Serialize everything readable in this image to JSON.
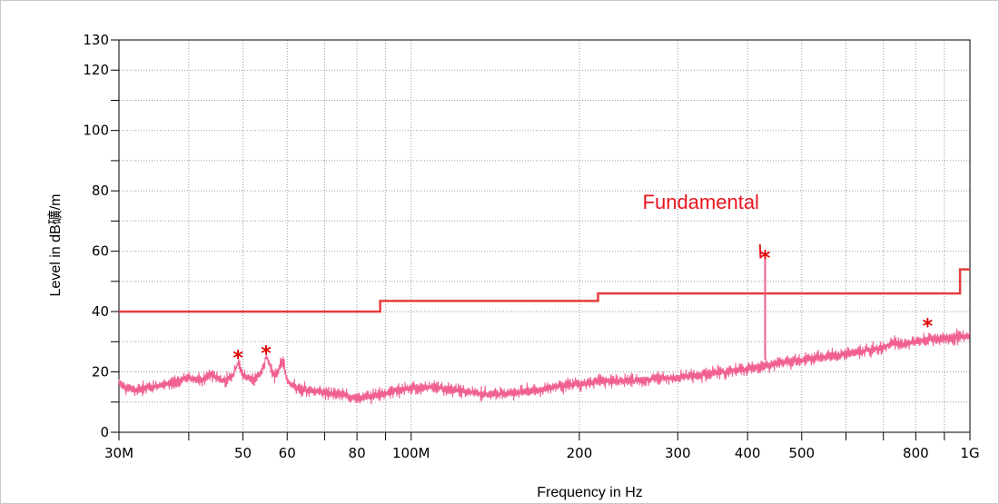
{
  "chart_data": {
    "type": "line",
    "title": "",
    "xlabel": "Frequency in Hz",
    "ylabel": "Level in dB礦/m",
    "x_scale": "log",
    "xlim": [
      30000000,
      1000000000
    ],
    "ylim": [
      0,
      130
    ],
    "grid": true,
    "x_ticks": [
      {
        "value": 30000000,
        "label": "30M"
      },
      {
        "value": 40000000,
        "label": ""
      },
      {
        "value": 50000000,
        "label": "50"
      },
      {
        "value": 60000000,
        "label": "60"
      },
      {
        "value": 70000000,
        "label": ""
      },
      {
        "value": 80000000,
        "label": "80"
      },
      {
        "value": 90000000,
        "label": ""
      },
      {
        "value": 100000000,
        "label": "100M"
      },
      {
        "value": 200000000,
        "label": "200"
      },
      {
        "value": 300000000,
        "label": "300"
      },
      {
        "value": 400000000,
        "label": "400"
      },
      {
        "value": 500000000,
        "label": "500"
      },
      {
        "value": 600000000,
        "label": ""
      },
      {
        "value": 700000000,
        "label": ""
      },
      {
        "value": 800000000,
        "label": "800"
      },
      {
        "value": 900000000,
        "label": ""
      },
      {
        "value": 1000000000,
        "label": "1G"
      }
    ],
    "y_ticks": [
      {
        "value": 0,
        "label": "0"
      },
      {
        "value": 10,
        "label": ""
      },
      {
        "value": 20,
        "label": "20"
      },
      {
        "value": 30,
        "label": ""
      },
      {
        "value": 40,
        "label": "40"
      },
      {
        "value": 50,
        "label": ""
      },
      {
        "value": 60,
        "label": "60"
      },
      {
        "value": 70,
        "label": ""
      },
      {
        "value": 80,
        "label": "80"
      },
      {
        "value": 90,
        "label": ""
      },
      {
        "value": 100,
        "label": "100"
      },
      {
        "value": 110,
        "label": ""
      },
      {
        "value": 120,
        "label": "120"
      },
      {
        "value": 130,
        "label": "130"
      }
    ],
    "series": [
      {
        "color": "#e83c3c",
        "style": "step",
        "points": [
          [
            30000000,
            40
          ],
          [
            88000000,
            40
          ],
          [
            88000000,
            43.5
          ],
          [
            216000000,
            43.5
          ],
          [
            216000000,
            46
          ],
          [
            960000000,
            46
          ],
          [
            960000000,
            54
          ],
          [
            1000000000,
            54
          ]
        ]
      },
      {
        "color": "#f06090",
        "style": "noisy",
        "points": [
          [
            30000000,
            16
          ],
          [
            32000000,
            14
          ],
          [
            34000000,
            15
          ],
          [
            36000000,
            15.5
          ],
          [
            38000000,
            17
          ],
          [
            40000000,
            18
          ],
          [
            42000000,
            17
          ],
          [
            44000000,
            19
          ],
          [
            46000000,
            17
          ],
          [
            48000000,
            19
          ],
          [
            49000000,
            23
          ],
          [
            50000000,
            19
          ],
          [
            52000000,
            17
          ],
          [
            54000000,
            20
          ],
          [
            55000000,
            25
          ],
          [
            56000000,
            22
          ],
          [
            57000000,
            18
          ],
          [
            58000000,
            21
          ],
          [
            59000000,
            24
          ],
          [
            60000000,
            17
          ],
          [
            63000000,
            14
          ],
          [
            66000000,
            14
          ],
          [
            70000000,
            13
          ],
          [
            75000000,
            12.5
          ],
          [
            80000000,
            11
          ],
          [
            85000000,
            12
          ],
          [
            90000000,
            13
          ],
          [
            95000000,
            14
          ],
          [
            100000000,
            14.5
          ],
          [
            105000000,
            15
          ],
          [
            110000000,
            15
          ],
          [
            120000000,
            14
          ],
          [
            130000000,
            13
          ],
          [
            140000000,
            12.5
          ],
          [
            150000000,
            13
          ],
          [
            160000000,
            13.5
          ],
          [
            170000000,
            14
          ],
          [
            180000000,
            15
          ],
          [
            200000000,
            16
          ],
          [
            220000000,
            17
          ],
          [
            250000000,
            17
          ],
          [
            280000000,
            18
          ],
          [
            300000000,
            18
          ],
          [
            330000000,
            19
          ],
          [
            360000000,
            20
          ],
          [
            400000000,
            21
          ],
          [
            430000000,
            22
          ],
          [
            460000000,
            23
          ],
          [
            500000000,
            24
          ],
          [
            550000000,
            25
          ],
          [
            600000000,
            26
          ],
          [
            650000000,
            27
          ],
          [
            700000000,
            28
          ],
          [
            730000000,
            30
          ],
          [
            760000000,
            29
          ],
          [
            800000000,
            30
          ],
          [
            850000000,
            31
          ],
          [
            900000000,
            31
          ],
          [
            950000000,
            31.5
          ],
          [
            1000000000,
            32
          ]
        ]
      }
    ],
    "spike": {
      "x": 430000000,
      "y": 58,
      "base": 24,
      "color": "#f06090"
    },
    "markers": {
      "color": "#e00000",
      "glyph": "*",
      "points": [
        [
          49000000,
          25.5
        ],
        [
          55000000,
          27
        ],
        [
          430000000,
          58.5
        ],
        [
          840000000,
          36
        ]
      ]
    },
    "annotations": [
      {
        "text": "Fundamental",
        "color": "#e8141e",
        "anchor": [
          430000000,
          58.5
        ],
        "label_pos": [
          330000000,
          74
        ]
      }
    ]
  }
}
